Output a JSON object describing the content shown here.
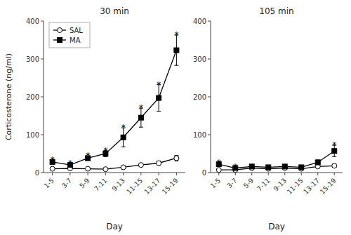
{
  "chart_data": [
    {
      "type": "line",
      "title": "30 min",
      "x_label": "Day",
      "y_label": "Corticosterone (ng/ml)",
      "categories": [
        "1-5",
        "3-7",
        "5-9",
        "7-11",
        "9-13",
        "11-15",
        "13-17",
        "15-19"
      ],
      "series": [
        {
          "name": "SAL",
          "color": "#000000",
          "marker": "open-circle",
          "values": [
            10,
            11,
            10,
            9,
            14,
            20,
            25,
            38
          ],
          "errors": [
            3,
            3,
            2,
            2,
            3,
            4,
            5,
            7
          ]
        },
        {
          "name": "MA",
          "color": "#000000",
          "marker": "filled-square",
          "values": [
            28,
            20,
            38,
            50,
            93,
            145,
            197,
            323
          ],
          "errors": [
            5,
            4,
            6,
            8,
            25,
            25,
            35,
            40
          ]
        }
      ],
      "annotations": [
        {
          "text": "*",
          "x": "1-5",
          "series": "MA"
        },
        {
          "text": "*",
          "x": "3-7",
          "series": "MA"
        },
        {
          "text": "*",
          "x": "5-9",
          "series": "MA"
        },
        {
          "text": "*",
          "x": "7-11",
          "series": "MA"
        },
        {
          "text": "*",
          "x": "9-13",
          "series": "MA"
        },
        {
          "text": "*",
          "x": "11-15",
          "series": "MA"
        },
        {
          "text": "*",
          "x": "13-17",
          "series": "MA"
        },
        {
          "text": "*",
          "x": "15-19",
          "series": "MA"
        }
      ],
      "ylim": [
        0,
        400
      ],
      "yticks": [
        0,
        100,
        200,
        300,
        400
      ],
      "legend": "upper left"
    },
    {
      "type": "line",
      "title": "105 min",
      "x_label": "Day",
      "categories": [
        "1-5",
        "3-7",
        "5-9",
        "7-11",
        "9-13",
        "11-15",
        "13-17",
        "15-19"
      ],
      "series": [
        {
          "name": "SAL",
          "color": "#000000",
          "marker": "open-circle",
          "values": [
            7,
            7,
            12,
            10,
            12,
            10,
            16,
            18
          ],
          "errors": [
            2,
            2,
            3,
            2,
            3,
            2,
            3,
            4
          ]
        },
        {
          "name": "MA",
          "color": "#000000",
          "marker": "filled-square",
          "values": [
            22,
            12,
            16,
            14,
            16,
            14,
            27,
            57
          ],
          "errors": [
            4,
            3,
            3,
            3,
            3,
            3,
            6,
            15
          ]
        }
      ],
      "annotations": [
        {
          "text": "*",
          "x": "1-5",
          "series": "MA"
        },
        {
          "text": "*",
          "x": "3-7",
          "series": "MA"
        },
        {
          "text": "*",
          "x": "15-19",
          "series": "MA"
        }
      ],
      "ylim": [
        0,
        400
      ],
      "yticks": [
        0,
        100,
        200,
        300,
        400
      ]
    }
  ]
}
